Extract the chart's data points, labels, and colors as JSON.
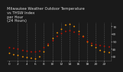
{
  "title": "Milwaukee Weather Outdoor Temperature\nvs THSW Index\nper Hour\n(24 Hours)",
  "title_fontsize": 3.8,
  "bg_color": "#1a1a1a",
  "plot_bg_color": "#1a1a1a",
  "grid_color": "#555555",
  "hours": [
    0,
    1,
    2,
    3,
    4,
    5,
    6,
    7,
    8,
    9,
    10,
    11,
    12,
    13,
    14,
    15,
    16,
    17,
    18,
    19,
    20,
    21,
    22,
    23
  ],
  "temp_values": [
    42,
    41,
    40,
    39,
    38,
    37,
    37,
    38,
    42,
    47,
    52,
    57,
    61,
    64,
    65,
    63,
    60,
    56,
    51,
    48,
    46,
    45,
    44,
    43
  ],
  "thsw_values": [
    35,
    33,
    32,
    30,
    29,
    28,
    27,
    30,
    37,
    45,
    54,
    62,
    67,
    72,
    73,
    70,
    64,
    57,
    50,
    45,
    42,
    39,
    37,
    36
  ],
  "temp_color": "#cc1100",
  "thsw_color": "#ff9900",
  "dark_dot_color": "#333333",
  "ylim": [
    25,
    75
  ],
  "yticks": [
    30,
    40,
    50,
    60,
    70
  ],
  "ytick_labels": [
    "30",
    "40",
    "50",
    "60",
    "70"
  ],
  "xlim": [
    -0.5,
    23.5
  ],
  "xtick_positions": [
    0,
    2,
    4,
    6,
    8,
    10,
    12,
    14,
    16,
    18,
    20,
    22
  ],
  "xtick_labels": [
    "0",
    "2",
    "4",
    "6",
    "8",
    "10",
    "12",
    "14",
    "16",
    "18",
    "20",
    "22"
  ],
  "marker_size": 2.0,
  "tick_fontsize": 3.2,
  "title_color": "#dddddd",
  "vgrid_hours": [
    2,
    4,
    6,
    8,
    10,
    12,
    14,
    16,
    18,
    20,
    22
  ]
}
